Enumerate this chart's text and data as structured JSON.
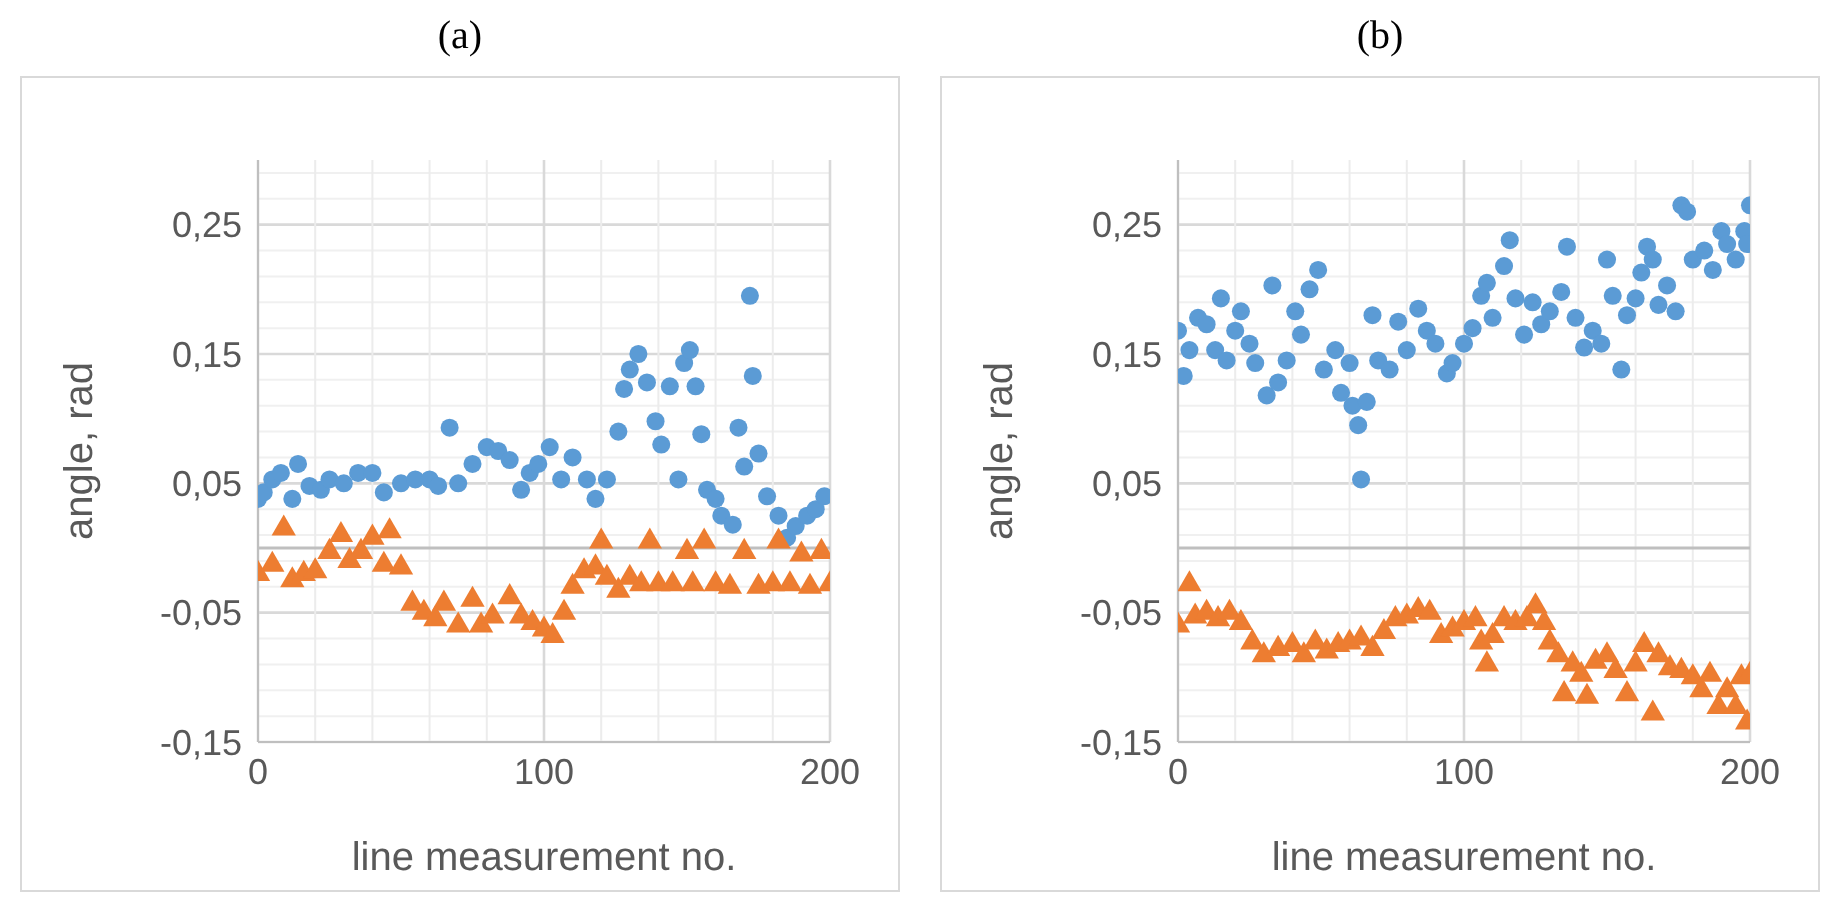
{
  "chart_data": [
    {
      "type": "scatter",
      "title": "(a)",
      "xlabel": "line measurement no.",
      "ylabel": "angle, rad",
      "xlim": [
        0,
        200
      ],
      "ylim": [
        -0.15,
        0.3
      ],
      "xticks": [
        0,
        {
          "value": 20,
          "label": null
        },
        {
          "value": 40,
          "label": null
        },
        {
          "value": 60,
          "label": null
        },
        {
          "value": 80,
          "label": null
        },
        100,
        {
          "value": 120,
          "label": null
        },
        {
          "value": 140,
          "label": null
        },
        {
          "value": 160,
          "label": null
        },
        {
          "value": 180,
          "label": null
        },
        200
      ],
      "yticks": [
        {
          "value": -0.15,
          "label": "-0,15"
        },
        {
          "value": -0.13,
          "label": null
        },
        {
          "value": -0.11,
          "label": null
        },
        {
          "value": -0.09,
          "label": null
        },
        {
          "value": -0.07,
          "label": null
        },
        {
          "value": -0.05,
          "label": "-0,05"
        },
        {
          "value": -0.03,
          "label": null
        },
        {
          "value": -0.01,
          "label": null
        },
        {
          "value": 0.01,
          "label": null
        },
        {
          "value": 0.03,
          "label": null
        },
        {
          "value": 0.05,
          "label": "0,05"
        },
        {
          "value": 0.07,
          "label": null
        },
        {
          "value": 0.09,
          "label": null
        },
        {
          "value": 0.11,
          "label": null
        },
        {
          "value": 0.13,
          "label": null
        },
        {
          "value": 0.15,
          "label": "0,15"
        },
        {
          "value": 0.17,
          "label": null
        },
        {
          "value": 0.19,
          "label": null
        },
        {
          "value": 0.21,
          "label": null
        },
        {
          "value": 0.23,
          "label": null
        },
        {
          "value": 0.25,
          "label": "0,25"
        },
        {
          "value": 0.27,
          "label": null
        },
        {
          "value": 0.29,
          "label": null
        }
      ],
      "grid": true,
      "ref_lines": [
        {
          "axis": "y",
          "value": 0,
          "color": "#bfbfbf"
        }
      ],
      "series": [
        {
          "color": "#5b9bd5",
          "marker": "circle",
          "x": [
            0,
            2,
            5,
            8,
            12,
            14,
            18,
            22,
            25,
            30,
            35,
            40,
            44,
            50,
            55,
            60,
            63,
            67,
            70,
            75,
            80,
            84,
            88,
            92,
            95,
            98,
            102,
            106,
            110,
            115,
            118,
            122,
            126,
            128,
            130,
            133,
            136,
            139,
            141,
            144,
            147,
            149,
            151,
            153,
            155,
            157,
            160,
            162,
            166,
            168,
            170,
            172,
            173,
            175,
            178,
            182,
            185,
            188,
            192,
            195,
            198
          ],
          "values": [
            0.038,
            0.043,
            0.053,
            0.058,
            0.038,
            0.065,
            0.048,
            0.045,
            0.053,
            0.05,
            0.058,
            0.058,
            0.043,
            0.05,
            0.053,
            0.053,
            0.048,
            0.093,
            0.05,
            0.065,
            0.078,
            0.075,
            0.068,
            0.045,
            0.058,
            0.065,
            0.078,
            0.053,
            0.07,
            0.053,
            0.038,
            0.053,
            0.09,
            0.123,
            0.138,
            0.15,
            0.128,
            0.098,
            0.08,
            0.125,
            0.053,
            0.143,
            0.153,
            0.125,
            0.088,
            0.045,
            0.038,
            0.025,
            0.018,
            0.093,
            0.063,
            0.195,
            0.133,
            0.073,
            0.04,
            0.025,
            0.008,
            0.017,
            0.025,
            0.03,
            0.04
          ]
        },
        {
          "color": "#ed7d31",
          "marker": "triangle",
          "x": [
            0,
            5,
            9,
            12,
            16,
            20,
            25,
            29,
            32,
            36,
            40,
            44,
            46,
            50,
            54,
            58,
            62,
            65,
            70,
            75,
            78,
            82,
            88,
            92,
            96,
            100,
            103,
            107,
            110,
            114,
            118,
            120,
            122,
            126,
            130,
            134,
            137,
            140,
            145,
            150,
            152,
            156,
            160,
            165,
            170,
            175,
            180,
            182,
            186,
            190,
            193,
            197,
            200
          ],
          "values": [
            -0.02,
            -0.013,
            0.015,
            -0.025,
            -0.02,
            -0.018,
            -0.003,
            0.01,
            -0.01,
            -0.003,
            0.008,
            -0.013,
            0.013,
            -0.015,
            -0.043,
            -0.05,
            -0.055,
            -0.043,
            -0.06,
            -0.04,
            -0.06,
            -0.053,
            -0.038,
            -0.053,
            -0.058,
            -0.063,
            -0.068,
            -0.05,
            -0.03,
            -0.018,
            -0.015,
            0.005,
            -0.023,
            -0.033,
            -0.023,
            -0.028,
            0.005,
            -0.028,
            -0.028,
            -0.003,
            -0.028,
            0.005,
            -0.028,
            -0.03,
            -0.003,
            -0.03,
            -0.028,
            0.005,
            -0.028,
            -0.005,
            -0.03,
            -0.003,
            -0.028
          ]
        }
      ]
    },
    {
      "type": "scatter",
      "title": "(b)",
      "xlabel": "line measurement no.",
      "ylabel": "angle, rad",
      "xlim": [
        0,
        200
      ],
      "ylim": [
        -0.15,
        0.3
      ],
      "xticks": [
        0,
        {
          "value": 20,
          "label": null
        },
        {
          "value": 40,
          "label": null
        },
        {
          "value": 60,
          "label": null
        },
        {
          "value": 80,
          "label": null
        },
        100,
        {
          "value": 120,
          "label": null
        },
        {
          "value": 140,
          "label": null
        },
        {
          "value": 160,
          "label": null
        },
        {
          "value": 180,
          "label": null
        },
        200
      ],
      "yticks": [
        {
          "value": -0.15,
          "label": "-0,15"
        },
        {
          "value": -0.13,
          "label": null
        },
        {
          "value": -0.11,
          "label": null
        },
        {
          "value": -0.09,
          "label": null
        },
        {
          "value": -0.07,
          "label": null
        },
        {
          "value": -0.05,
          "label": "-0,05"
        },
        {
          "value": -0.03,
          "label": null
        },
        {
          "value": -0.01,
          "label": null
        },
        {
          "value": 0.01,
          "label": null
        },
        {
          "value": 0.03,
          "label": null
        },
        {
          "value": 0.05,
          "label": "0,05"
        },
        {
          "value": 0.07,
          "label": null
        },
        {
          "value": 0.09,
          "label": null
        },
        {
          "value": 0.11,
          "label": null
        },
        {
          "value": 0.13,
          "label": null
        },
        {
          "value": 0.15,
          "label": "0,15"
        },
        {
          "value": 0.17,
          "label": null
        },
        {
          "value": 0.19,
          "label": null
        },
        {
          "value": 0.21,
          "label": null
        },
        {
          "value": 0.23,
          "label": null
        },
        {
          "value": 0.25,
          "label": "0,25"
        },
        {
          "value": 0.27,
          "label": null
        },
        {
          "value": 0.29,
          "label": null
        }
      ],
      "grid": true,
      "ref_lines": [
        {
          "axis": "y",
          "value": 0,
          "color": "#bfbfbf"
        }
      ],
      "series": [
        {
          "color": "#5b9bd5",
          "marker": "circle",
          "x": [
            0,
            2,
            4,
            7,
            10,
            13,
            15,
            17,
            20,
            22,
            25,
            27,
            31,
            33,
            35,
            38,
            41,
            43,
            46,
            49,
            51,
            55,
            57,
            60,
            61,
            63,
            64,
            66,
            68,
            70,
            74,
            77,
            80,
            84,
            87,
            90,
            94,
            96,
            100,
            103,
            106,
            108,
            110,
            114,
            116,
            118,
            121,
            124,
            127,
            130,
            134,
            136,
            139,
            142,
            145,
            148,
            150,
            152,
            155,
            157,
            160,
            162,
            164,
            166,
            168,
            171,
            174,
            176,
            178,
            180,
            184,
            187,
            190,
            192,
            195,
            198,
            199,
            200
          ],
          "values": [
            0.168,
            0.133,
            0.153,
            0.178,
            0.173,
            0.153,
            0.193,
            0.145,
            0.168,
            0.183,
            0.158,
            0.143,
            0.118,
            0.203,
            0.128,
            0.145,
            0.183,
            0.165,
            0.2,
            0.215,
            0.138,
            0.153,
            0.12,
            0.143,
            0.11,
            0.095,
            0.053,
            0.113,
            0.18,
            0.145,
            0.138,
            0.175,
            0.153,
            0.185,
            0.168,
            0.158,
            0.135,
            0.143,
            0.158,
            0.17,
            0.195,
            0.205,
            0.178,
            0.218,
            0.238,
            0.193,
            0.165,
            0.19,
            0.173,
            0.183,
            0.198,
            0.233,
            0.178,
            0.155,
            0.168,
            0.158,
            0.223,
            0.195,
            0.138,
            0.18,
            0.193,
            0.213,
            0.233,
            0.223,
            0.188,
            0.203,
            0.183,
            0.265,
            0.26,
            0.223,
            0.23,
            0.215,
            0.245,
            0.235,
            0.223,
            0.245,
            0.235,
            0.265
          ]
        },
        {
          "color": "#ed7d31",
          "marker": "triangle",
          "x": [
            0,
            4,
            6,
            10,
            14,
            18,
            22,
            26,
            30,
            35,
            40,
            44,
            48,
            52,
            56,
            60,
            64,
            68,
            72,
            76,
            80,
            84,
            88,
            92,
            96,
            100,
            104,
            106,
            108,
            110,
            114,
            118,
            122,
            125,
            128,
            130,
            133,
            135,
            138,
            141,
            143,
            146,
            150,
            153,
            157,
            160,
            163,
            166,
            168,
            172,
            176,
            180,
            183,
            186,
            189,
            192,
            195,
            197,
            199,
            200
          ],
          "values": [
            -0.06,
            -0.028,
            -0.053,
            -0.05,
            -0.055,
            -0.05,
            -0.058,
            -0.073,
            -0.083,
            -0.078,
            -0.075,
            -0.083,
            -0.073,
            -0.08,
            -0.075,
            -0.073,
            -0.07,
            -0.078,
            -0.065,
            -0.055,
            -0.053,
            -0.048,
            -0.05,
            -0.068,
            -0.063,
            -0.058,
            -0.055,
            -0.073,
            -0.09,
            -0.068,
            -0.055,
            -0.058,
            -0.055,
            -0.045,
            -0.058,
            -0.073,
            -0.083,
            -0.113,
            -0.09,
            -0.098,
            -0.115,
            -0.088,
            -0.083,
            -0.095,
            -0.113,
            -0.09,
            -0.075,
            -0.128,
            -0.083,
            -0.093,
            -0.095,
            -0.1,
            -0.11,
            -0.098,
            -0.123,
            -0.11,
            -0.123,
            -0.1,
            -0.135,
            -0.098
          ]
        }
      ]
    }
  ]
}
